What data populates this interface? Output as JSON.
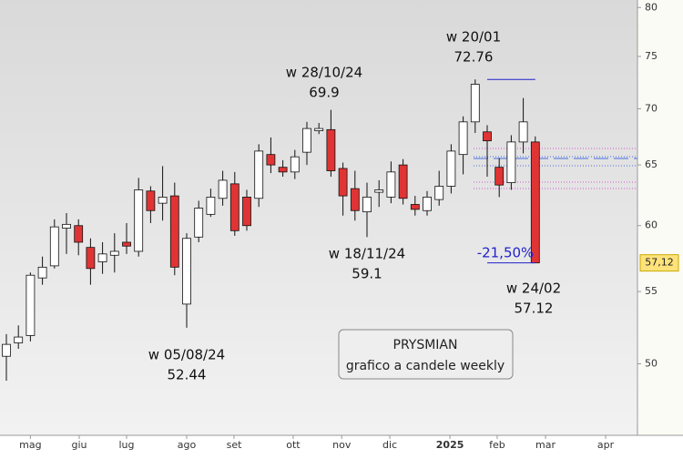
{
  "chart_data": {
    "type": "candlestick",
    "title": "PRYSMIAN",
    "subtitle": "grafico a candele weekly",
    "categories": [
      null,
      null,
      null,
      null,
      null,
      null,
      null,
      null,
      null,
      null,
      null,
      null,
      null,
      null,
      null,
      null,
      null,
      null,
      null,
      null,
      null,
      null,
      null,
      null,
      null,
      null,
      null,
      null,
      null,
      null,
      null,
      null,
      null,
      null,
      null,
      null,
      null,
      null,
      null,
      null,
      null,
      null,
      null,
      null,
      null
    ],
    "open": [
      50.5,
      51.4,
      51.9,
      56.0,
      56.9,
      59.8,
      60.0,
      58.3,
      57.2,
      57.7,
      58.7,
      58.0,
      62.8,
      61.8,
      62.4,
      54.1,
      59.1,
      60.9,
      62.2,
      63.4,
      62.3,
      62.2,
      65.9,
      64.8,
      64.4,
      66.1,
      68.0,
      68.1,
      64.7,
      63.0,
      61.1,
      62.7,
      62.3,
      65.0,
      61.7,
      61.2,
      62.1,
      63.2,
      65.9,
      68.8,
      67.9,
      64.8,
      63.5,
      67.0,
      67.0
    ],
    "high": [
      52.0,
      52.6,
      56.4,
      57.6,
      60.5,
      61.0,
      60.5,
      59.0,
      58.7,
      59.4,
      60.2,
      63.9,
      63.2,
      64.9,
      63.5,
      59.4,
      62.0,
      63.0,
      64.5,
      64.4,
      62.9,
      66.8,
      67.4,
      65.4,
      66.3,
      68.8,
      68.7,
      69.9,
      65.2,
      64.5,
      63.5,
      63.7,
      65.3,
      65.5,
      62.4,
      62.8,
      64.5,
      66.8,
      69.3,
      72.76,
      68.5,
      65.6,
      67.6,
      71.0,
      67.5
    ],
    "low": [
      48.9,
      51.0,
      51.5,
      55.5,
      56.7,
      57.8,
      57.7,
      55.5,
      56.3,
      56.4,
      57.8,
      57.6,
      60.2,
      60.4,
      56.2,
      52.44,
      58.7,
      60.7,
      61.6,
      59.2,
      59.6,
      61.5,
      64.3,
      64.0,
      63.8,
      65.0,
      67.7,
      64.0,
      60.8,
      60.4,
      59.1,
      61.5,
      61.8,
      61.7,
      60.8,
      60.8,
      61.6,
      62.6,
      64.2,
      67.8,
      64.0,
      62.3,
      62.9,
      66.0,
      57.12
    ],
    "close": [
      51.3,
      51.8,
      56.2,
      56.8,
      59.9,
      60.1,
      58.7,
      56.7,
      57.8,
      58.0,
      58.4,
      62.9,
      61.2,
      62.3,
      56.8,
      59.0,
      61.4,
      62.3,
      63.7,
      59.6,
      60.0,
      66.2,
      65.0,
      64.4,
      65.7,
      68.2,
      68.2,
      64.5,
      62.4,
      61.2,
      62.3,
      62.9,
      64.4,
      62.2,
      61.3,
      62.3,
      63.2,
      66.2,
      68.8,
      72.3,
      67.1,
      63.3,
      67.0,
      68.8,
      57.12
    ],
    "up_color": "#ffffff",
    "down_color": "#e03434",
    "xlim": [
      -0.53,
      52.5
    ],
    "xticks": [
      {
        "value": 2,
        "label": "mag"
      },
      {
        "value": 6.06,
        "label": "giu"
      },
      {
        "value": 10,
        "label": "lug"
      },
      {
        "value": 15,
        "label": "ago"
      },
      {
        "value": 18.94,
        "label": "set"
      },
      {
        "value": 23.86,
        "label": "ott"
      },
      {
        "value": 27.9,
        "label": "nov"
      },
      {
        "value": 31.9,
        "label": "dic"
      },
      {
        "value": 36.9,
        "label": "2025"
      },
      {
        "value": 40.83,
        "label": "feb"
      },
      {
        "value": 44.85,
        "label": "mar"
      },
      {
        "value": 49.85,
        "label": "apr"
      }
    ],
    "ylim": [
      45.5,
      80.8
    ],
    "yticks": [
      50,
      55,
      60,
      65,
      70,
      75,
      80
    ],
    "log_scale": true,
    "annotations": [
      {
        "text": "w 05/08/24",
        "value": 52.44
      },
      {
        "text": "w 28/10/24",
        "value": 69.9
      },
      {
        "text": "w 18/11/24",
        "value": 59.1
      },
      {
        "text": "w 20/01",
        "value": 72.76
      },
      {
        "text": "w 24/02",
        "value": 57.12
      }
    ],
    "last_price": {
      "value": 57.12,
      "label": "57,12"
    },
    "change": {
      "value": -21.5,
      "label": "-21,50%"
    }
  }
}
